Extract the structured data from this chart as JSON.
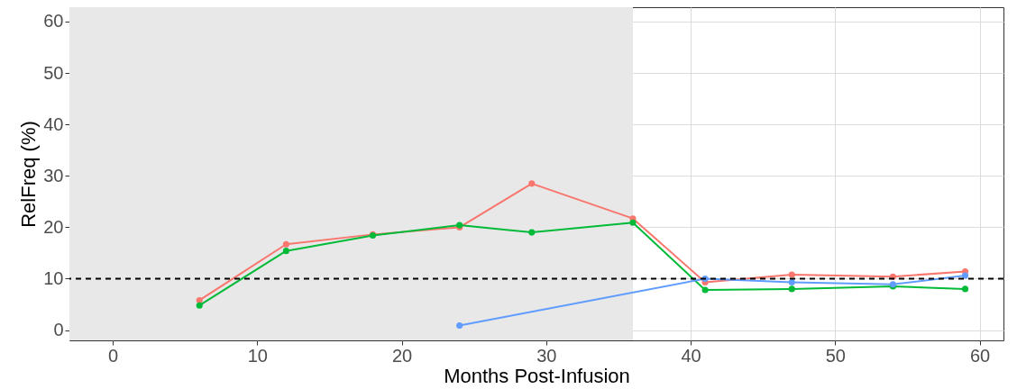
{
  "chart_data": {
    "type": "line",
    "xlabel": "Months Post-Infusion",
    "ylabel": "RelFreq (%)",
    "xlim": [
      -3,
      61.65
    ],
    "xticks": [
      0,
      10,
      20,
      30,
      40,
      50,
      60
    ],
    "ylim": [
      -2,
      62.8
    ],
    "yticks": [
      0,
      10,
      20,
      30,
      40,
      50,
      60
    ],
    "grid": true,
    "marker": "circle",
    "line_style": "solid",
    "series": [
      {
        "color": "#f8766d",
        "x": [
          6,
          12,
          18,
          24,
          29,
          36,
          41,
          47,
          54,
          59
        ],
        "values": [
          5.8,
          16.7,
          18.6,
          20,
          28.5,
          21.7,
          9.3,
          10.8,
          10.4,
          11.4
        ]
      },
      {
        "color": "#00ba38",
        "x": [
          6,
          12,
          18,
          24,
          29,
          36,
          41,
          47,
          54,
          59
        ],
        "values": [
          4.8,
          15.4,
          18.4,
          20.4,
          19,
          20.9,
          7.8,
          8,
          8.5,
          8
        ]
      },
      {
        "color": "#619cff",
        "x": [
          24,
          41,
          47,
          54,
          59
        ],
        "values": [
          0.9,
          10,
          9.3,
          8.9,
          10.6
        ]
      }
    ],
    "ref_lines": [
      {
        "axis": "y",
        "value": 10,
        "line_style": "dashed",
        "color": "#000000"
      }
    ],
    "bands": [
      {
        "axis": "x",
        "from": -3,
        "to": 36,
        "color": "#e8e8e8"
      }
    ]
  }
}
